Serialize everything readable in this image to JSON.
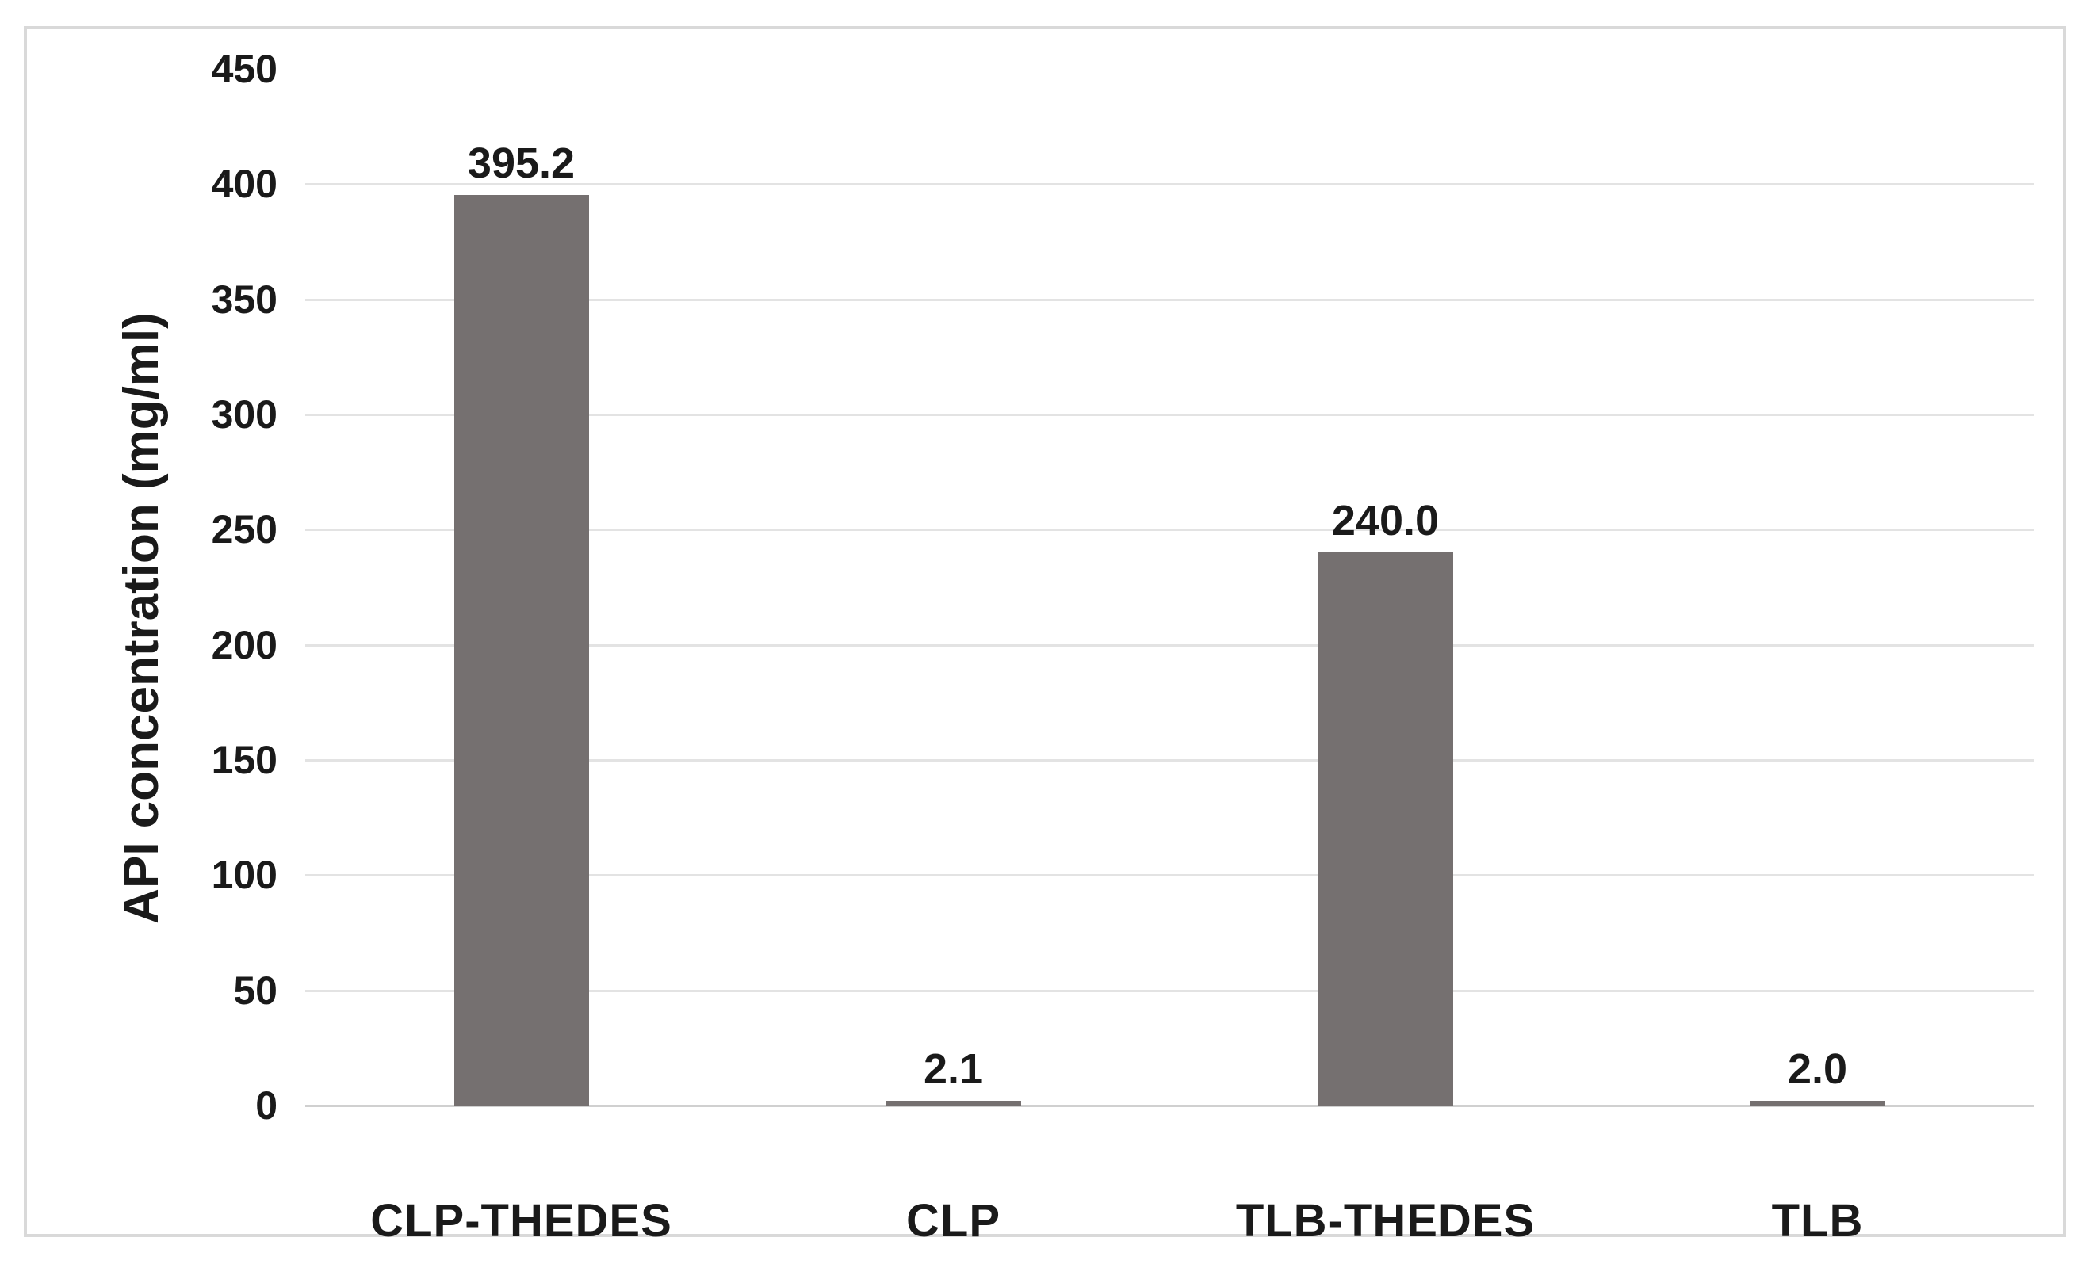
{
  "figure": {
    "background_color": "#ffffff",
    "border_color": "#d9d9d9",
    "gridline_color": "#e3e3e3",
    "baseline_color": "#d0d0d0",
    "text_color": "#1a1a1a"
  },
  "chart_data": {
    "type": "bar",
    "title": "",
    "xlabel": "",
    "ylabel": "API concentration (mg/ml)",
    "categories": [
      "CLP-THEDES",
      "CLP",
      "TLB-THEDES",
      "TLB"
    ],
    "values": [
      395.2,
      2.1,
      240.0,
      2.0
    ],
    "data_labels": [
      "395.2",
      "2.1",
      "240.0",
      "2.0"
    ],
    "ylim": [
      0,
      450
    ],
    "ytick_step": 50,
    "yticks": [
      0,
      50,
      100,
      150,
      200,
      250,
      300,
      350,
      400,
      450
    ],
    "gridlines_at": [
      0,
      50,
      100,
      150,
      200,
      250,
      300,
      350,
      400
    ],
    "grid": "horizontal-major",
    "legend_position": "none",
    "bar_color": "#757070",
    "data_label_color": "#1a1a1a",
    "tick_label_color": "#1a1a1a"
  }
}
